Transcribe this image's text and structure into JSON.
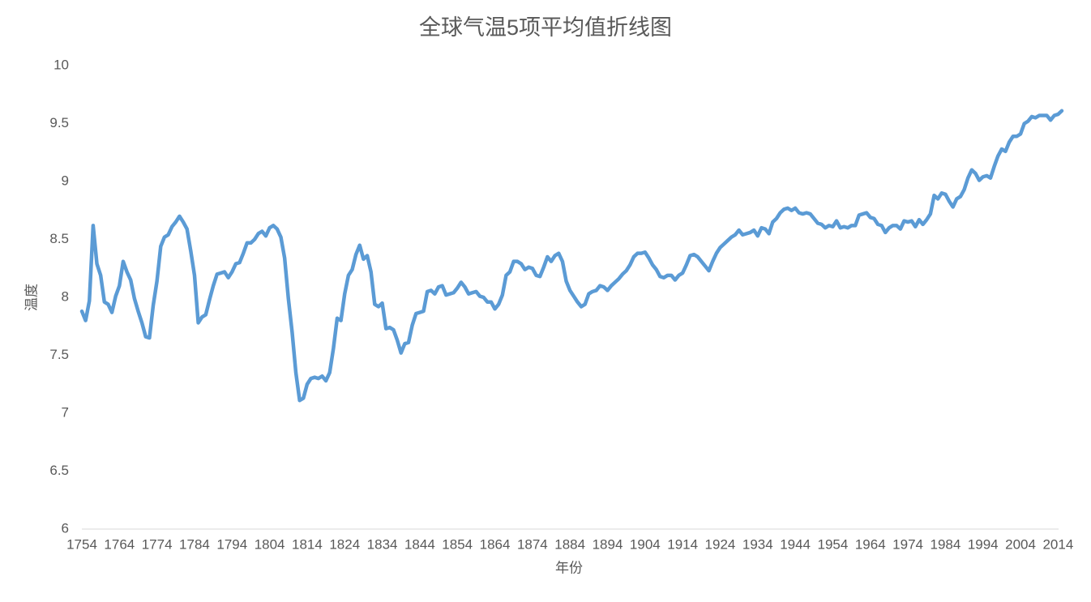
{
  "chart_data": {
    "type": "line",
    "title": "全球气温5项平均值折线图",
    "x_label": "年份",
    "y_label": "温度",
    "x": [
      1754,
      1755,
      1756,
      1757,
      1758,
      1759,
      1760,
      1761,
      1762,
      1763,
      1764,
      1765,
      1766,
      1767,
      1768,
      1769,
      1770,
      1771,
      1772,
      1773,
      1774,
      1775,
      1776,
      1777,
      1778,
      1779,
      1780,
      1781,
      1782,
      1783,
      1784,
      1785,
      1786,
      1787,
      1788,
      1789,
      1790,
      1791,
      1792,
      1793,
      1794,
      1795,
      1796,
      1797,
      1798,
      1799,
      1800,
      1801,
      1802,
      1803,
      1804,
      1805,
      1806,
      1807,
      1808,
      1809,
      1810,
      1811,
      1812,
      1813,
      1814,
      1815,
      1816,
      1817,
      1818,
      1819,
      1820,
      1821,
      1822,
      1823,
      1824,
      1825,
      1826,
      1827,
      1828,
      1829,
      1830,
      1831,
      1832,
      1833,
      1834,
      1835,
      1836,
      1837,
      1838,
      1839,
      1840,
      1841,
      1842,
      1843,
      1844,
      1845,
      1846,
      1847,
      1848,
      1849,
      1850,
      1851,
      1852,
      1853,
      1854,
      1855,
      1856,
      1857,
      1858,
      1859,
      1860,
      1861,
      1862,
      1863,
      1864,
      1865,
      1866,
      1867,
      1868,
      1869,
      1870,
      1871,
      1872,
      1873,
      1874,
      1875,
      1876,
      1877,
      1878,
      1879,
      1880,
      1881,
      1882,
      1883,
      1884,
      1885,
      1886,
      1887,
      1888,
      1889,
      1890,
      1891,
      1892,
      1893,
      1894,
      1895,
      1896,
      1897,
      1898,
      1899,
      1900,
      1901,
      1902,
      1903,
      1904,
      1905,
      1906,
      1907,
      1908,
      1909,
      1910,
      1911,
      1912,
      1913,
      1914,
      1915,
      1916,
      1917,
      1918,
      1919,
      1920,
      1921,
      1922,
      1923,
      1924,
      1925,
      1926,
      1927,
      1928,
      1929,
      1930,
      1931,
      1932,
      1933,
      1934,
      1935,
      1936,
      1937,
      1938,
      1939,
      1940,
      1941,
      1942,
      1943,
      1944,
      1945,
      1946,
      1947,
      1948,
      1949,
      1950,
      1951,
      1952,
      1953,
      1954,
      1955,
      1956,
      1957,
      1958,
      1959,
      1960,
      1961,
      1962,
      1963,
      1964,
      1965,
      1966,
      1967,
      1968,
      1969,
      1970,
      1971,
      1972,
      1973,
      1974,
      1975,
      1976,
      1977,
      1978,
      1979,
      1980,
      1981,
      1982,
      1983,
      1984,
      1985,
      1986,
      1987,
      1988,
      1989,
      1990,
      1991,
      1992,
      1993,
      1994,
      1995,
      1996,
      1997,
      1998,
      1999,
      2000,
      2001,
      2002,
      2003,
      2004,
      2005,
      2006,
      2007,
      2008,
      2009,
      2010,
      2011,
      2012,
      2013,
      2014,
      2015
    ],
    "values": [
      7.88,
      7.8,
      7.97,
      8.62,
      8.29,
      8.19,
      7.96,
      7.94,
      7.87,
      8.01,
      8.1,
      8.31,
      8.22,
      8.15,
      7.99,
      7.88,
      7.78,
      7.66,
      7.65,
      7.93,
      8.14,
      8.44,
      8.52,
      8.54,
      8.61,
      8.65,
      8.7,
      8.65,
      8.59,
      8.4,
      8.19,
      7.78,
      7.83,
      7.85,
      7.98,
      8.1,
      8.2,
      8.21,
      8.22,
      8.17,
      8.22,
      8.29,
      8.3,
      8.38,
      8.47,
      8.47,
      8.5,
      8.55,
      8.57,
      8.53,
      8.6,
      8.62,
      8.59,
      8.52,
      8.34,
      7.99,
      7.7,
      7.35,
      7.11,
      7.13,
      7.25,
      7.3,
      7.31,
      7.3,
      7.32,
      7.28,
      7.35,
      7.56,
      7.82,
      7.8,
      8.03,
      8.19,
      8.24,
      8.37,
      8.45,
      8.33,
      8.36,
      8.22,
      7.94,
      7.92,
      7.95,
      7.73,
      7.74,
      7.72,
      7.63,
      7.52,
      7.6,
      7.61,
      7.76,
      7.86,
      7.87,
      7.88,
      8.05,
      8.06,
      8.03,
      8.09,
      8.1,
      8.02,
      8.03,
      8.04,
      8.08,
      8.13,
      8.09,
      8.03,
      8.04,
      8.05,
      8.01,
      8.0,
      7.96,
      7.96,
      7.9,
      7.94,
      8.02,
      8.19,
      8.22,
      8.31,
      8.31,
      8.29,
      8.24,
      8.26,
      8.25,
      8.19,
      8.18,
      8.26,
      8.35,
      8.31,
      8.36,
      8.38,
      8.31,
      8.14,
      8.06,
      8.01,
      7.96,
      7.92,
      7.94,
      8.03,
      8.05,
      8.06,
      8.1,
      8.09,
      8.06,
      8.1,
      8.13,
      8.16,
      8.2,
      8.23,
      8.28,
      8.35,
      8.38,
      8.38,
      8.39,
      8.34,
      8.28,
      8.24,
      8.18,
      8.17,
      8.19,
      8.19,
      8.15,
      8.19,
      8.21,
      8.28,
      8.36,
      8.37,
      8.35,
      8.31,
      8.27,
      8.23,
      8.31,
      8.38,
      8.43,
      8.46,
      8.49,
      8.52,
      8.54,
      8.58,
      8.54,
      8.55,
      8.56,
      8.58,
      8.53,
      8.6,
      8.59,
      8.55,
      8.65,
      8.68,
      8.73,
      8.76,
      8.77,
      8.75,
      8.77,
      8.73,
      8.72,
      8.73,
      8.72,
      8.68,
      8.64,
      8.63,
      8.6,
      8.62,
      8.61,
      8.66,
      8.6,
      8.61,
      8.6,
      8.62,
      8.62,
      8.71,
      8.72,
      8.73,
      8.69,
      8.68,
      8.63,
      8.62,
      8.56,
      8.6,
      8.62,
      8.62,
      8.59,
      8.66,
      8.65,
      8.66,
      8.61,
      8.67,
      8.63,
      8.67,
      8.72,
      8.88,
      8.85,
      8.9,
      8.89,
      8.83,
      8.78,
      8.85,
      8.87,
      8.93,
      9.03,
      9.1,
      9.07,
      9.01,
      9.04,
      9.05,
      9.03,
      9.13,
      9.22,
      9.28,
      9.26,
      9.34,
      9.39,
      9.39,
      9.41,
      9.5,
      9.52,
      9.56,
      9.55,
      9.57,
      9.57,
      9.57,
      9.53,
      9.57,
      9.58,
      9.61
    ],
    "color": "#5b9bd5",
    "xlim": [
      1754,
      2015
    ],
    "xticks": [
      1754,
      1764,
      1774,
      1784,
      1794,
      1804,
      1814,
      1824,
      1834,
      1844,
      1854,
      1864,
      1874,
      1884,
      1894,
      1904,
      1914,
      1924,
      1934,
      1944,
      1954,
      1964,
      1974,
      1984,
      1994,
      2004,
      2014
    ],
    "ylim": [
      6,
      10
    ],
    "yticks": [
      6,
      6.5,
      7,
      7.5,
      8,
      8.5,
      9,
      9.5,
      10
    ],
    "grid": false
  }
}
